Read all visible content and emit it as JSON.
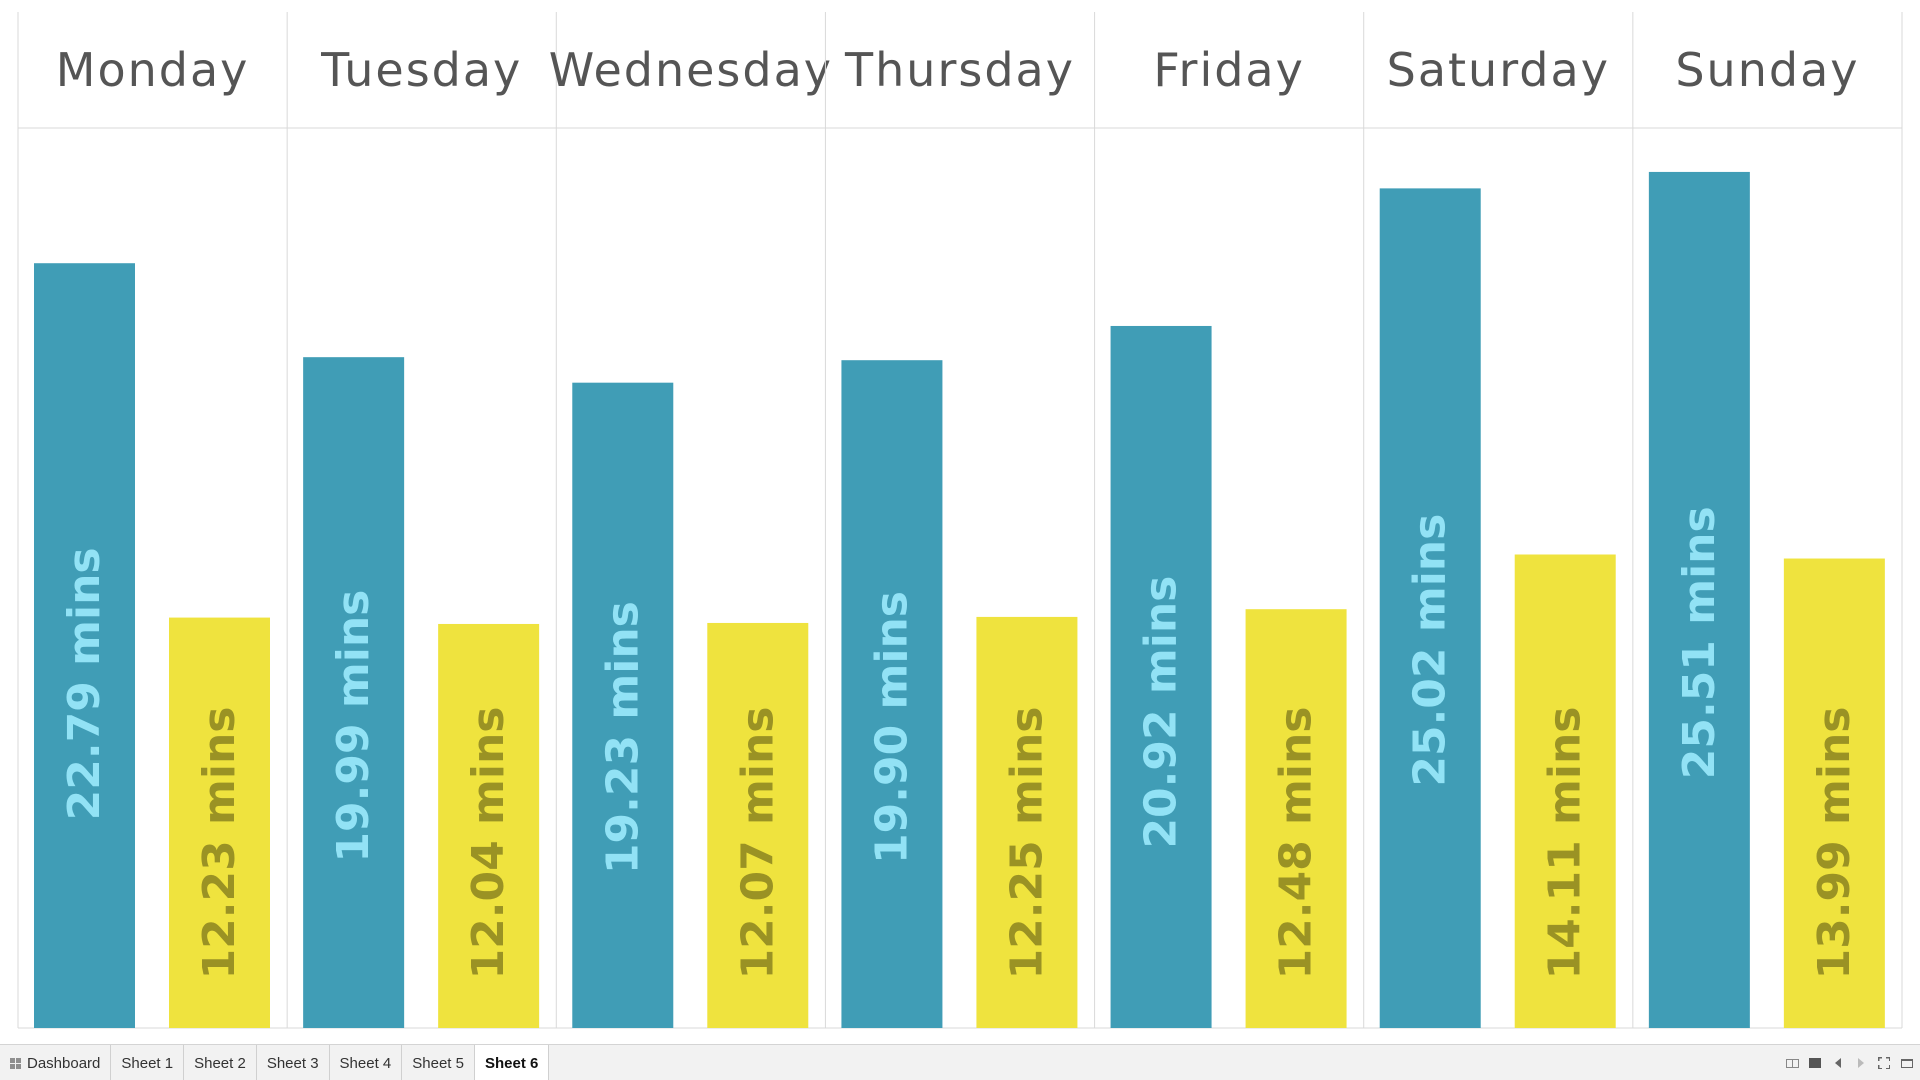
{
  "chart_data": {
    "type": "bar",
    "categories": [
      "Monday",
      "Tuesday",
      "Wednesday",
      "Thursday",
      "Friday",
      "Saturday",
      "Sunday"
    ],
    "series": [
      {
        "color": "#409db6",
        "label_color": "#92e2f5",
        "values": [
          22.79,
          19.99,
          19.23,
          19.9,
          20.92,
          25.02,
          25.51
        ],
        "labels": [
          "22.79 mins",
          "19.99 mins",
          "19.23 mins",
          "19.90 mins",
          "20.92 mins",
          "25.02 mins",
          "25.51 mins"
        ]
      },
      {
        "color": "#efe33e",
        "label_color": "#9a9224",
        "values": [
          12.23,
          12.04,
          12.07,
          12.25,
          12.48,
          14.11,
          13.99
        ],
        "labels": [
          "12.23 mins",
          "12.04 mins",
          "12.07 mins",
          "12.25 mins",
          "12.48 mins",
          "14.11 mins",
          "13.99 mins"
        ]
      }
    ],
    "title": "",
    "xlabel": "",
    "ylabel": "",
    "ylim": [
      0,
      26.7
    ],
    "grid": false,
    "legend": "none",
    "value_label_orientation": "vertical"
  },
  "tabs": [
    {
      "label": "Dashboard",
      "icon": "dashboard-grid-icon"
    },
    {
      "label": "Sheet 1"
    },
    {
      "label": "Sheet 2"
    },
    {
      "label": "Sheet 3"
    },
    {
      "label": "Sheet 4"
    },
    {
      "label": "Sheet 5"
    },
    {
      "label": "Sheet 6",
      "active": true
    }
  ],
  "colors": {
    "header_text": "#555555",
    "divider": "#d9d9d9",
    "tab_strip_bg": "#f2f2f2"
  }
}
